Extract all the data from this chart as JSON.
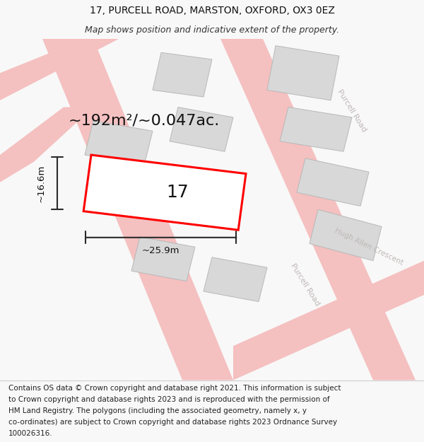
{
  "title_line1": "17, PURCELL ROAD, MARSTON, OXFORD, OX3 0EZ",
  "title_line2": "Map shows position and indicative extent of the property.",
  "area_text": "~192m²/~0.047ac.",
  "width_label": "~25.9m",
  "height_label": "~16.6m",
  "number_label": "17",
  "footer_lines": [
    "Contains OS data © Crown copyright and database right 2021. This information is subject",
    "to Crown copyright and database rights 2023 and is reproduced with the permission of",
    "HM Land Registry. The polygons (including the associated geometry, namely x, y",
    "co-ordinates) are subject to Crown copyright and database rights 2023 Ordnance Survey",
    "100026316."
  ],
  "bg_color": "#f8f8f8",
  "map_bg": "#ffffff",
  "road_color": "#f5c0c0",
  "building_color": "#d8d8d8",
  "building_stroke": "#b8b8b8",
  "highlight_color": "#ff0000",
  "highlight_fill": "#ffffff",
  "road_label_color": "#c0b8b8",
  "dim_line_color": "#2a2a2a",
  "title_fontsize": 10,
  "subtitle_fontsize": 9,
  "area_fontsize": 16,
  "number_fontsize": 18,
  "footer_fontsize": 7.5
}
